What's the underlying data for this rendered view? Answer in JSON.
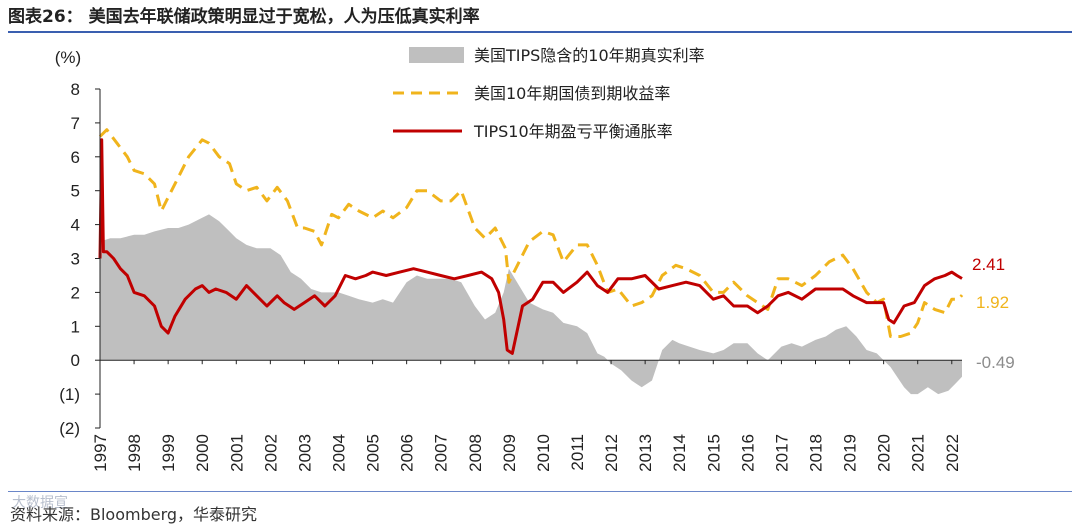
{
  "page": {
    "title": "图表26：  美国去年联储政策明显过于宽松，人为压低真实利率",
    "source": "资料来源：Bloomberg，华泰研究",
    "watermark": "大数据宣"
  },
  "chart_data": {
    "type": "line",
    "yunit": "(%)",
    "ylim": [
      -2,
      8
    ],
    "yticks": [
      {
        "v": 8,
        "label": "8"
      },
      {
        "v": 7,
        "label": "7"
      },
      {
        "v": 6,
        "label": "6"
      },
      {
        "v": 5,
        "label": "5"
      },
      {
        "v": 4,
        "label": "4"
      },
      {
        "v": 3,
        "label": "3"
      },
      {
        "v": 2,
        "label": "2"
      },
      {
        "v": 1,
        "label": "1"
      },
      {
        "v": 0,
        "label": "0"
      },
      {
        "v": -1,
        "label": "(1)"
      },
      {
        "v": -2,
        "label": "(2)"
      }
    ],
    "xlim": [
      1997.0,
      2022.3
    ],
    "xticks": [
      "1997",
      "1998",
      "1999",
      "2000",
      "2001",
      "2002",
      "2003",
      "2004",
      "2005",
      "2006",
      "2007",
      "2008",
      "2009",
      "2010",
      "2011",
      "2012",
      "2013",
      "2014",
      "2015",
      "2016",
      "2017",
      "2018",
      "2019",
      "2020",
      "2021",
      "2022"
    ],
    "colors": {
      "real": "#bfbfbf",
      "nominal": "#f0b41c",
      "breakeven": "#c00000",
      "real_label": "#8c8c8c"
    },
    "legend": {
      "real": "美国TIPS隐含的10年期真实利率",
      "nominal": "美国10年期国债到期收益率",
      "breakeven": "TIPS10年期盈亏平衡通胀率"
    },
    "end_labels": {
      "breakeven": "2.41",
      "nominal": "1.92",
      "real": "-0.49"
    },
    "series": [
      {
        "name": "美国TIPS隐含的10年期真实利率",
        "key": "real",
        "style": "area",
        "x": [
          1997.0,
          1997.3,
          1997.6,
          1998.0,
          1998.3,
          1998.6,
          1999.0,
          1999.3,
          1999.6,
          2000.0,
          2000.2,
          2000.5,
          2000.8,
          2001.0,
          2001.3,
          2001.6,
          2002.0,
          2002.3,
          2002.6,
          2002.9,
          2003.2,
          2003.5,
          2003.8,
          2004.0,
          2004.3,
          2004.6,
          2005.0,
          2005.3,
          2005.6,
          2006.0,
          2006.3,
          2006.6,
          2007.0,
          2007.3,
          2007.6,
          2008.0,
          2008.3,
          2008.6,
          2008.85,
          2009.0,
          2009.3,
          2009.6,
          2010.0,
          2010.3,
          2010.6,
          2011.0,
          2011.3,
          2011.6,
          2011.8,
          2012.0,
          2012.3,
          2012.6,
          2012.9,
          2013.2,
          2013.5,
          2013.8,
          2014.0,
          2014.3,
          2014.6,
          2015.0,
          2015.3,
          2015.6,
          2016.0,
          2016.3,
          2016.6,
          2017.0,
          2017.3,
          2017.6,
          2018.0,
          2018.3,
          2018.6,
          2018.9,
          2019.2,
          2019.5,
          2019.8,
          2020.0,
          2020.2,
          2020.4,
          2020.6,
          2020.8,
          2021.0,
          2021.3,
          2021.6,
          2021.9,
          2022.1,
          2022.3
        ],
        "values": [
          3.5,
          3.6,
          3.6,
          3.7,
          3.7,
          3.8,
          3.9,
          3.9,
          4.0,
          4.2,
          4.3,
          4.1,
          3.8,
          3.6,
          3.4,
          3.3,
          3.3,
          3.1,
          2.6,
          2.4,
          2.1,
          2.0,
          2.0,
          2.0,
          1.9,
          1.8,
          1.7,
          1.8,
          1.7,
          2.3,
          2.5,
          2.4,
          2.4,
          2.4,
          2.3,
          1.6,
          1.2,
          1.4,
          2.0,
          2.7,
          2.2,
          1.7,
          1.5,
          1.4,
          1.1,
          1.0,
          0.8,
          0.2,
          0.1,
          -0.1,
          -0.3,
          -0.6,
          -0.8,
          -0.6,
          0.3,
          0.6,
          0.5,
          0.4,
          0.3,
          0.2,
          0.3,
          0.5,
          0.5,
          0.2,
          0.0,
          0.4,
          0.5,
          0.4,
          0.6,
          0.7,
          0.9,
          1.0,
          0.7,
          0.3,
          0.2,
          0.0,
          -0.2,
          -0.5,
          -0.8,
          -1.0,
          -1.0,
          -0.8,
          -1.0,
          -0.9,
          -0.7,
          -0.49
        ]
      },
      {
        "name": "美国10年期国债到期收益率",
        "key": "nominal",
        "style": "dashed",
        "x": [
          1997.0,
          1997.2,
          1997.5,
          1997.8,
          1998.0,
          1998.3,
          1998.6,
          1998.8,
          1999.0,
          1999.3,
          1999.6,
          2000.0,
          2000.2,
          2000.5,
          2000.8,
          2001.0,
          2001.3,
          2001.6,
          2001.9,
          2002.2,
          2002.5,
          2002.8,
          2003.0,
          2003.3,
          2003.5,
          2003.8,
          2004.0,
          2004.3,
          2004.6,
          2005.0,
          2005.3,
          2005.6,
          2006.0,
          2006.3,
          2006.6,
          2007.0,
          2007.3,
          2007.6,
          2008.0,
          2008.3,
          2008.6,
          2008.9,
          2009.0,
          2009.3,
          2009.6,
          2010.0,
          2010.3,
          2010.6,
          2011.0,
          2011.3,
          2011.6,
          2011.9,
          2012.2,
          2012.6,
          2012.9,
          2013.2,
          2013.5,
          2013.9,
          2014.2,
          2014.6,
          2015.0,
          2015.3,
          2015.6,
          2016.0,
          2016.3,
          2016.6,
          2016.9,
          2017.2,
          2017.6,
          2018.0,
          2018.4,
          2018.8,
          2019.1,
          2019.5,
          2019.8,
          2020.0,
          2020.2,
          2020.5,
          2020.8,
          2021.0,
          2021.2,
          2021.5,
          2021.8,
          2022.0,
          2022.2,
          2022.3
        ],
        "values": [
          6.6,
          6.8,
          6.4,
          6.0,
          5.6,
          5.5,
          5.2,
          4.4,
          4.8,
          5.4,
          6.0,
          6.5,
          6.4,
          6.0,
          5.8,
          5.2,
          5.0,
          5.1,
          4.7,
          5.1,
          4.7,
          3.9,
          3.9,
          3.8,
          3.4,
          4.3,
          4.2,
          4.6,
          4.4,
          4.2,
          4.4,
          4.2,
          4.5,
          5.0,
          5.0,
          4.7,
          4.7,
          5.0,
          3.9,
          3.6,
          3.9,
          3.3,
          2.3,
          2.9,
          3.5,
          3.8,
          3.7,
          2.9,
          3.4,
          3.4,
          2.8,
          2.0,
          2.1,
          1.6,
          1.7,
          1.9,
          2.5,
          2.8,
          2.7,
          2.5,
          2.0,
          2.0,
          2.3,
          1.9,
          1.7,
          1.5,
          2.4,
          2.4,
          2.2,
          2.5,
          2.9,
          3.1,
          2.7,
          2.0,
          1.7,
          1.8,
          0.7,
          0.7,
          0.8,
          1.1,
          1.7,
          1.5,
          1.4,
          1.8,
          1.8,
          1.92
        ]
      },
      {
        "name": "TIPS10年期盈亏平衡通胀率",
        "key": "breakeven",
        "style": "solid",
        "x": [
          1997.0,
          1997.05,
          1997.1,
          1997.2,
          1997.4,
          1997.6,
          1997.8,
          1998.0,
          1998.3,
          1998.6,
          1998.8,
          1999.0,
          1999.2,
          1999.5,
          1999.8,
          2000.0,
          2000.2,
          2000.4,
          2000.7,
          2001.0,
          2001.3,
          2001.6,
          2001.9,
          2002.2,
          2002.4,
          2002.7,
          2003.0,
          2003.3,
          2003.6,
          2003.9,
          2004.2,
          2004.5,
          2004.8,
          2005.0,
          2005.4,
          2005.8,
          2006.2,
          2006.6,
          2007.0,
          2007.4,
          2007.8,
          2008.2,
          2008.5,
          2008.7,
          2008.85,
          2008.95,
          2009.1,
          2009.4,
          2009.7,
          2010.0,
          2010.3,
          2010.6,
          2011.0,
          2011.3,
          2011.6,
          2011.9,
          2012.2,
          2012.6,
          2013.0,
          2013.4,
          2013.8,
          2014.2,
          2014.6,
          2015.0,
          2015.3,
          2015.6,
          2016.0,
          2016.3,
          2016.6,
          2016.9,
          2017.2,
          2017.6,
          2018.0,
          2018.4,
          2018.8,
          2019.1,
          2019.5,
          2019.8,
          2020.0,
          2020.15,
          2020.3,
          2020.6,
          2020.9,
          2021.2,
          2021.5,
          2021.8,
          2022.0,
          2022.15,
          2022.3
        ],
        "values": [
          3.0,
          6.5,
          3.2,
          3.2,
          3.0,
          2.7,
          2.5,
          2.0,
          1.9,
          1.6,
          1.0,
          0.8,
          1.3,
          1.8,
          2.1,
          2.2,
          2.0,
          2.1,
          2.0,
          1.8,
          2.2,
          1.9,
          1.6,
          1.9,
          1.7,
          1.5,
          1.7,
          1.9,
          1.6,
          1.9,
          2.5,
          2.4,
          2.5,
          2.6,
          2.5,
          2.6,
          2.7,
          2.6,
          2.5,
          2.4,
          2.5,
          2.6,
          2.4,
          2.0,
          1.2,
          0.3,
          0.2,
          1.6,
          1.8,
          2.3,
          2.3,
          2.0,
          2.3,
          2.6,
          2.2,
          2.0,
          2.4,
          2.4,
          2.5,
          2.1,
          2.2,
          2.3,
          2.2,
          1.8,
          1.9,
          1.6,
          1.6,
          1.4,
          1.6,
          1.9,
          2.0,
          1.8,
          2.1,
          2.1,
          2.1,
          1.9,
          1.7,
          1.7,
          1.7,
          1.2,
          1.1,
          1.6,
          1.7,
          2.2,
          2.4,
          2.5,
          2.6,
          2.5,
          2.41
        ]
      }
    ]
  }
}
